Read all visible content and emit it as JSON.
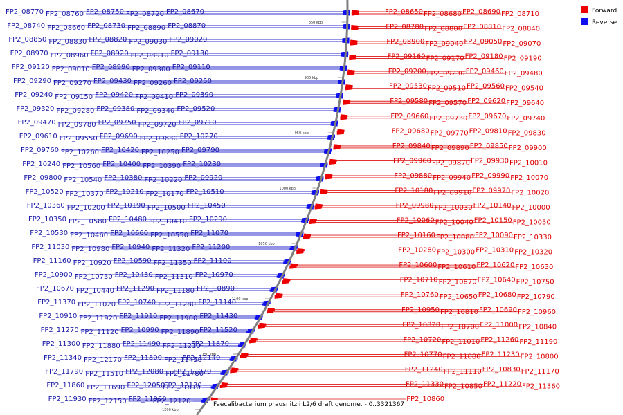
{
  "caption": "Faecalibacterium prausnitzii L2/6 draft genome. - 0..3321367",
  "legend": {
    "forward": {
      "label": "Forward",
      "color": "#ee0000"
    },
    "reverse": {
      "label": "Reverse",
      "color": "#1010ee"
    }
  },
  "ticks": [
    "850 kbp",
    "900 kbp",
    "950 kbp",
    "1000 kbp",
    "1050 kbp",
    "1100 kbp",
    "1150 kbp",
    "1200 kbp"
  ],
  "forward_genes": [
    "FP2_08650",
    "FP2_08680",
    "FP2_08690",
    "FP2_08710",
    "FP2_08780",
    "FP2_08800",
    "FP2_08810",
    "FP2_08840",
    "FP2_08900",
    "FP2_09040",
    "FP2_09050",
    "FP2_09070",
    "FP2_09160",
    "FP2_09170",
    "FP2_09180",
    "FP2_09190",
    "FP2_09200",
    "FP2_09230",
    "FP2_09460",
    "FP2_09480",
    "FP2_09530",
    "FP2_09510",
    "FP2_09560",
    "FP2_09540",
    "FP2_09580",
    "FP2_09570",
    "FP2_09620",
    "FP2_09640",
    "FP2_09660",
    "FP2_09730",
    "FP2_09670",
    "FP2_09740",
    "FP2_09680",
    "FP2_09770",
    "FP2_09810",
    "FP2_09830",
    "FP2_09840",
    "FP2_09890",
    "FP2_09850",
    "FP2_09900",
    "FP2_09960",
    "FP2_09870",
    "FP2_09930",
    "FP2_10010",
    "FP2_09880",
    "FP2_09940",
    "FP2_09990",
    "FP2_10070",
    "FP2_10180",
    "FP2_09910",
    "FP2_09970",
    "FP2_10020",
    "FP2_09980",
    "FP2_10030",
    "FP2_10140",
    "FP2_10000",
    "FP2_10060",
    "FP2_10040",
    "FP2_10150",
    "FP2_10050",
    "FP2_10160",
    "FP2_10080",
    "FP2_10090",
    "FP2_10330",
    "FP2_10280",
    "FP2_10300",
    "FP2_10310",
    "FP2_10320",
    "FP2_10600",
    "FP2_10610",
    "FP2_10620",
    "FP2_10630",
    "FP2_10710",
    "FP2_10870",
    "FP2_10640",
    "FP2_10750",
    "FP2_10760",
    "FP2_10650",
    "FP2_10680",
    "FP2_10790",
    "FP2_10950",
    "FP2_10810",
    "FP2_10690",
    "FP2_10960",
    "FP2_10820",
    "FP2_10700",
    "FP2_11000",
    "FP2_10840",
    "FP2_10720",
    "FP2_11010",
    "FP2_11260",
    "FP2_11190",
    "FP2_10770",
    "FP2_11080",
    "FP2_11230",
    "FP2_10800",
    "FP2_11240",
    "FP2_11110",
    "FP2_10830",
    "FP2_11170",
    "FP2_11330",
    "FP2_10850",
    "FP2_11220",
    "FP2_11360",
    "FP2_10860"
  ],
  "reverse_genes": [
    "FP2_08770",
    "FP2_08760",
    "FP2_08750",
    "FP2_08720",
    "FP2_08670",
    "FP2_08740",
    "FP2_08660",
    "FP2_08730",
    "FP2_08890",
    "FP2_08870",
    "FP2_08850",
    "FP2_08830",
    "FP2_08820",
    "FP2_09030",
    "FP2_09020",
    "FP2_08970",
    "FP2_08960",
    "FP2_08920",
    "FP2_08910",
    "FP2_09130",
    "FP2_09120",
    "FP2_09010",
    "FP2_08990",
    "FP2_09300",
    "FP2_09110",
    "FP2_09290",
    "FP2_09270",
    "FP2_09430",
    "FP2_09260",
    "FP2_09250",
    "FP2_09240",
    "FP2_09150",
    "FP2_09420",
    "FP2_09410",
    "FP2_09390",
    "FP2_09320",
    "FP2_09280",
    "FP2_09380",
    "FP2_09340",
    "FP2_09520",
    "FP2_09470",
    "FP2_09780",
    "FP2_09750",
    "FP2_09720",
    "FP2_09710",
    "FP2_09610",
    "FP2_09550",
    "FP2_09690",
    "FP2_09630",
    "FP2_10270",
    "FP2_09760",
    "FP2_10260",
    "FP2_10420",
    "FP2_10250",
    "FP2_09790",
    "FP2_10240",
    "FP2_10560",
    "FP2_10400",
    "FP2_10390",
    "FP2_10230",
    "FP2_09800",
    "FP2_10540",
    "FP2_10380",
    "FP2_10220",
    "FP2_09920",
    "FP2_10520",
    "FP2_10370",
    "FP2_10210",
    "FP2_10170",
    "FP2_10510",
    "FP2_10360",
    "FP2_10200",
    "FP2_10190",
    "FP2_10500",
    "FP2_10450",
    "FP2_10350",
    "FP2_10580",
    "FP2_10480",
    "FP2_10410",
    "FP2_10290",
    "FP2_10530",
    "FP2_10460",
    "FP2_10660",
    "FP2_10550",
    "FP2_11070",
    "FP2_11030",
    "FP2_10980",
    "FP2_10940",
    "FP2_11320",
    "FP2_11200",
    "FP2_11160",
    "FP2_10920",
    "FP2_10590",
    "FP2_11350",
    "FP2_11100",
    "FP2_10900",
    "FP2_10730",
    "FP2_10430",
    "FP2_11310",
    "FP2_10970",
    "FP2_10670",
    "FP2_10440",
    "FP2_11290",
    "FP2_11180",
    "FP2_10890",
    "FP2_11370",
    "FP2_11020",
    "FP2_10740",
    "FP2_11280",
    "FP2_11140",
    "FP2_10910",
    "FP2_11920",
    "FP2_11910",
    "FP2_11900",
    "FP2_11430",
    "FP2_11270",
    "FP2_11120",
    "FP2_10990",
    "FP2_11890",
    "FP2_11520",
    "FP2_11300",
    "FP2_11880",
    "FP2_11490",
    "FP2_11210",
    "FP2_11870",
    "FP2_11340",
    "FP2_12170",
    "FP2_11800",
    "FP2_11450",
    "FP2_12140",
    "FP2_11790",
    "FP2_11510",
    "FP2_12080",
    "FP2_11780",
    "FP2_12070",
    "FP2_11860",
    "FP2_11690",
    "FP2_12050",
    "FP2_11810",
    "FP2_12130",
    "FP2_11930",
    "FP2_12150",
    "FP2_11960",
    "FP2_12120"
  ]
}
